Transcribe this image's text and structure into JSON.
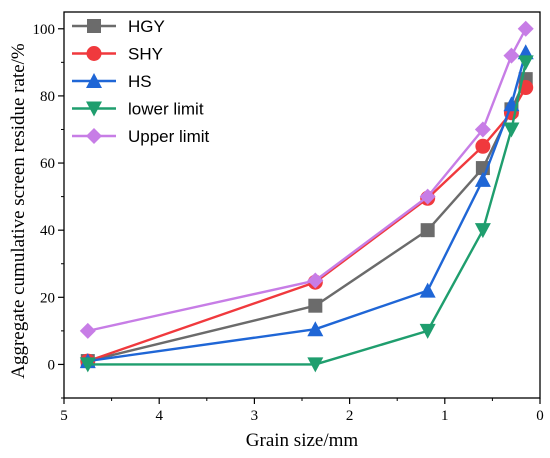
{
  "chart_data": {
    "type": "line",
    "xlabel": "Grain size/mm",
    "ylabel": "Aggregate cumulative screen residue rate/%",
    "xlim": [
      5,
      0
    ],
    "ylim": [
      -10,
      105
    ],
    "x_reversed": true,
    "x_ticks": [
      5,
      4,
      3,
      2,
      1,
      0
    ],
    "y_ticks": [
      0,
      20,
      40,
      60,
      80,
      100
    ],
    "grid": false,
    "legend_position": "top-left",
    "x": [
      4.75,
      2.36,
      1.18,
      0.6,
      0.3,
      0.15
    ],
    "series": [
      {
        "name": "HGY",
        "color": "#6b6b6b",
        "marker": "square",
        "values": [
          1,
          17.5,
          40,
          58.5,
          76,
          85
        ]
      },
      {
        "name": "SHY",
        "color": "#f0393d",
        "marker": "circle",
        "values": [
          1,
          24.5,
          49.5,
          65,
          75,
          82.5
        ]
      },
      {
        "name": "HS",
        "color": "#1f66d6",
        "marker": "triangle-up",
        "values": [
          1,
          10.5,
          22,
          55,
          77.5,
          93
        ]
      },
      {
        "name": "lower limit",
        "color": "#1f9e6e",
        "marker": "triangle-down",
        "values": [
          0,
          0,
          10,
          40,
          70,
          90
        ]
      },
      {
        "name": "Upper limit",
        "color": "#c77de6",
        "marker": "diamond",
        "values": [
          10,
          25,
          50,
          70,
          92,
          100
        ]
      }
    ]
  }
}
